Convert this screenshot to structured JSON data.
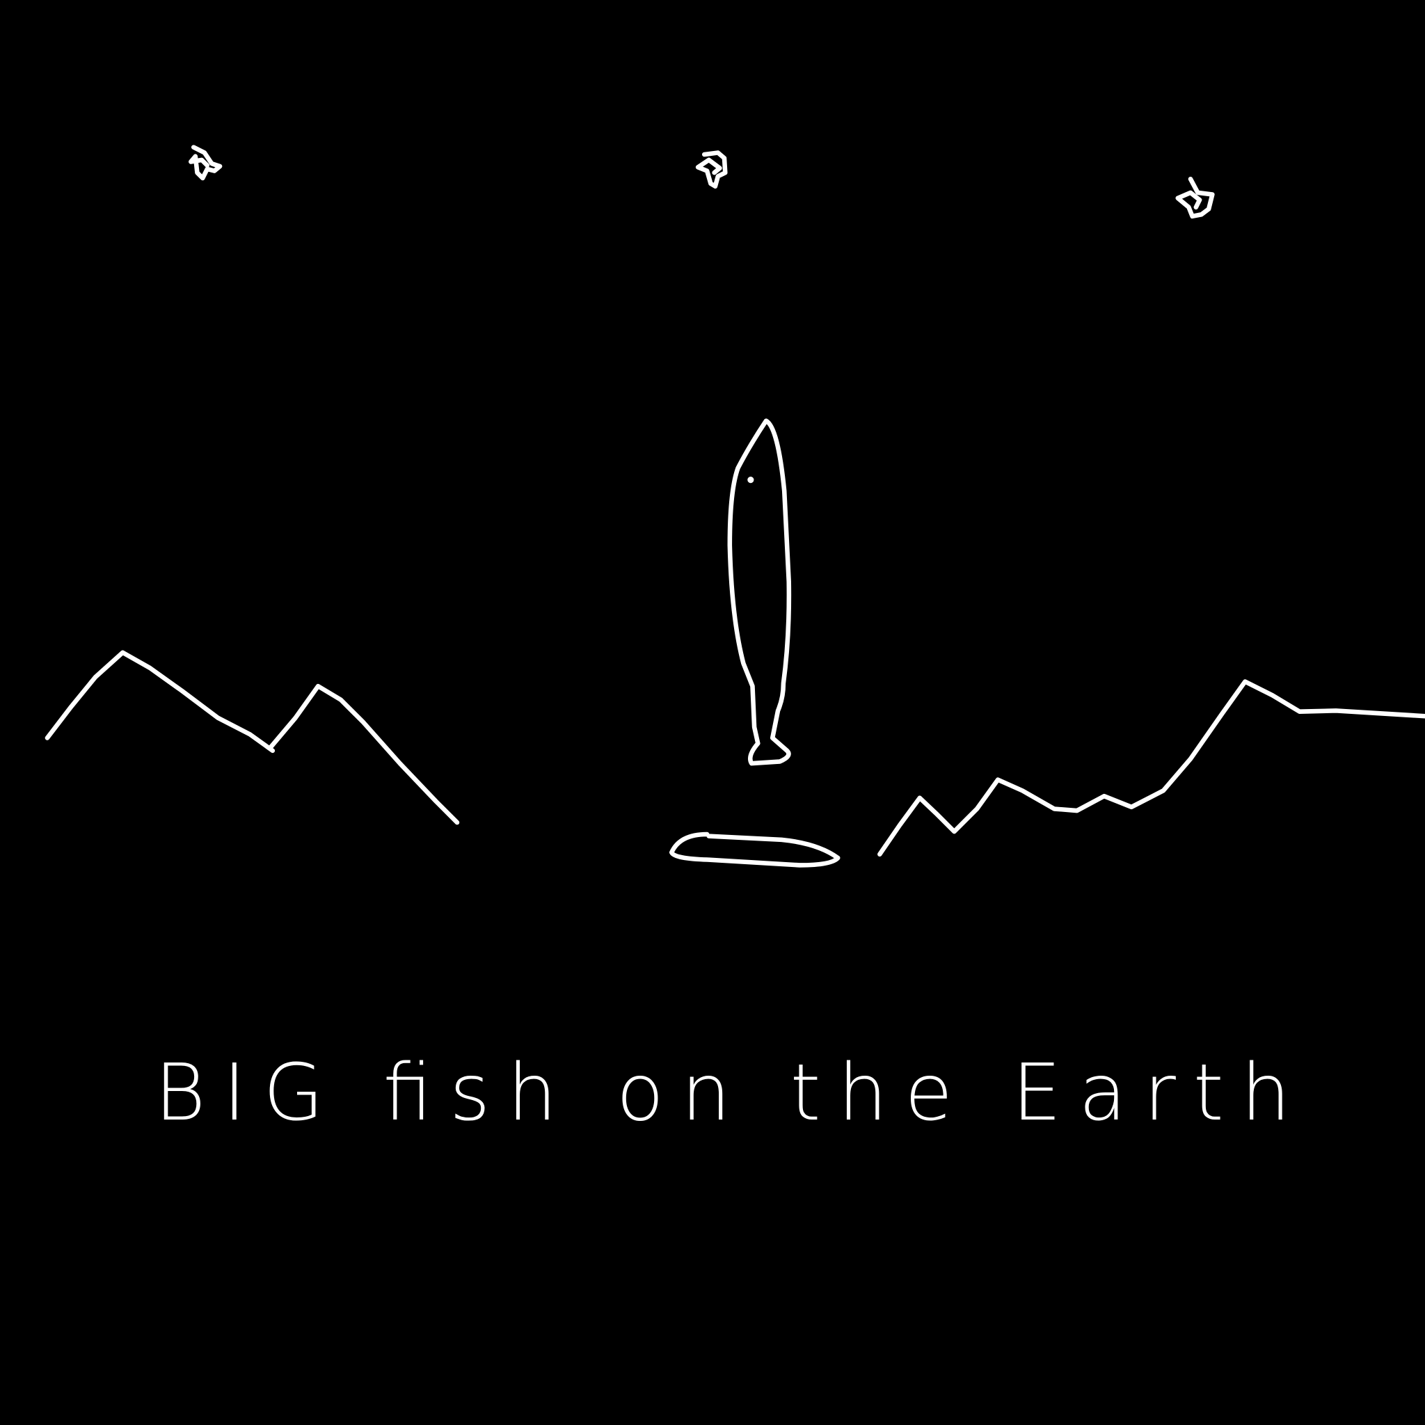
{
  "caption": "BIG fish on the Earth"
}
